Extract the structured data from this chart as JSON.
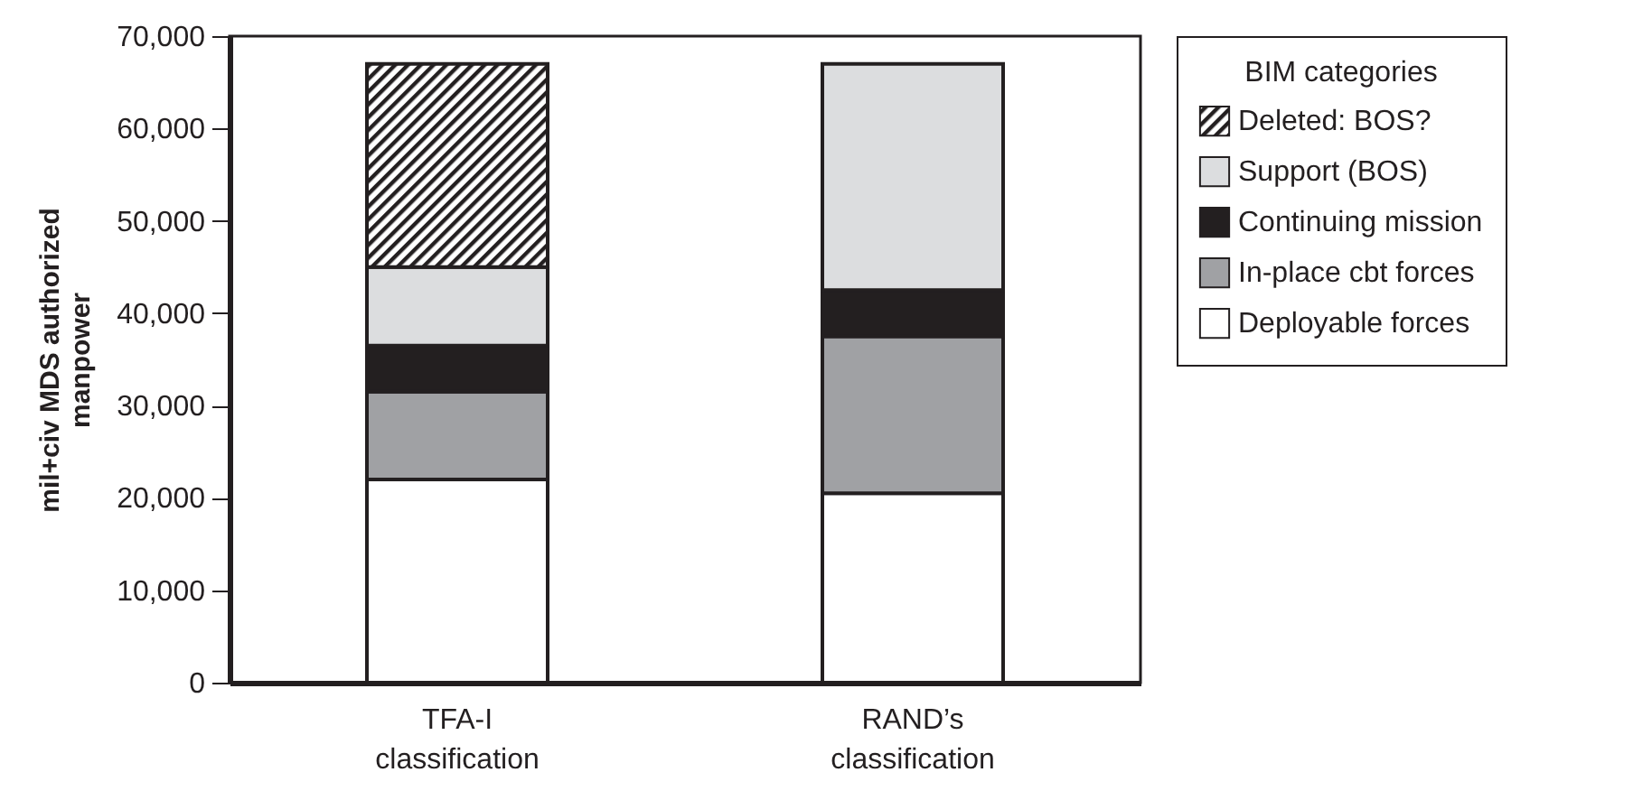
{
  "chart_data": {
    "type": "bar",
    "stacked": true,
    "ylabel": "mil+civ MDS authorized manpower",
    "legend_title": "BIM categories",
    "legend": "right",
    "grid": false,
    "categories": [
      "TFA-I classification",
      "RAND’s classification"
    ],
    "ylim": [
      0,
      70000
    ],
    "yticks": [
      {
        "value": 0,
        "label": "0"
      },
      {
        "value": 10000,
        "label": "10,000"
      },
      {
        "value": 20000,
        "label": "20,000"
      },
      {
        "value": 30000,
        "label": "30,000"
      },
      {
        "value": 40000,
        "label": "40,000"
      },
      {
        "value": 50000,
        "label": "50,000"
      },
      {
        "value": 60000,
        "label": "60,000"
      },
      {
        "value": 70000,
        "label": "70,000"
      }
    ],
    "series": [
      {
        "name": "Deployable forces",
        "color": "#ffffff",
        "values": [
          22000,
          20500
        ]
      },
      {
        "name": "In-place cbt forces",
        "color": "#a0a1a4",
        "values": [
          9500,
          17000
        ]
      },
      {
        "name": "Continuing mission",
        "color": "#231f20",
        "values": [
          5000,
          5000
        ]
      },
      {
        "name": "Support (BOS)",
        "color": "#dcdddf",
        "values": [
          8500,
          24500
        ]
      },
      {
        "name": "Deleted: BOS?",
        "color": "#231f20",
        "values": [
          22000,
          null
        ]
      }
    ]
  }
}
